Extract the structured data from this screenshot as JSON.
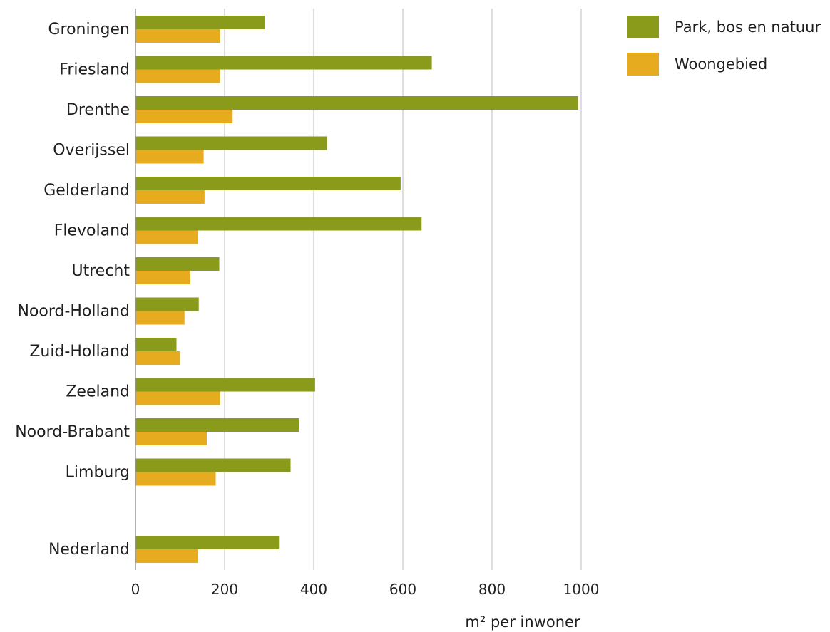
{
  "chart_data": {
    "type": "bar",
    "orientation": "horizontal",
    "categories": [
      "Groningen",
      "Friesland",
      "Drenthe",
      "Overijssel",
      "Gelderland",
      "Flevoland",
      "Utrecht",
      "Noord-Holland",
      "Zuid-Holland",
      "Zeeland",
      "Noord-Brabant",
      "Limburg",
      "Nederland"
    ],
    "series": [
      {
        "name": "Park, bos en natuur",
        "color": "#8a9a1b",
        "values": [
          290,
          665,
          993,
          430,
          595,
          642,
          188,
          142,
          92,
          403,
          367,
          348,
          322
        ]
      },
      {
        "name": "Woongebied",
        "color": "#e6ab1e",
        "values": [
          190,
          190,
          218,
          153,
          155,
          140,
          123,
          110,
          100,
          190,
          160,
          180,
          140
        ]
      }
    ],
    "title": "",
    "xlabel": "m² per inwoner",
    "ylabel": "",
    "xlim": [
      0,
      1000
    ],
    "xticks": [
      "0",
      "200",
      "400",
      "600",
      "800",
      "1000"
    ],
    "grid": "vertical",
    "legend_position": "top-right"
  }
}
